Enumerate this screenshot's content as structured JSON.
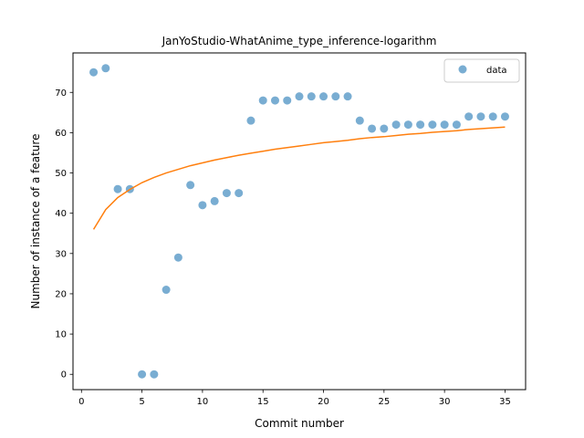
{
  "chart_data": {
    "type": "scatter",
    "title": "JanYoStudio-WhatAnime_type_inference-logarithm",
    "xlabel": "Commit number",
    "ylabel": "Number of instance of a feature",
    "xlim": [
      -0.7,
      36.7
    ],
    "ylim": [
      -3.8,
      79.8
    ],
    "xticks": [
      0,
      5,
      10,
      15,
      20,
      25,
      30,
      35
    ],
    "yticks": [
      0,
      10,
      20,
      30,
      40,
      50,
      60,
      70
    ],
    "grid": false,
    "legend_position": "top-right",
    "colors": {
      "scatter": "#1f77b4",
      "fit": "#ff7f0e"
    },
    "series": [
      {
        "name": "data",
        "kind": "scatter",
        "x": [
          1,
          2,
          3,
          4,
          5,
          6,
          7,
          8,
          9,
          10,
          11,
          12,
          13,
          14,
          15,
          16,
          17,
          18,
          19,
          20,
          21,
          22,
          23,
          24,
          25,
          26,
          27,
          28,
          29,
          30,
          31,
          32,
          33,
          34,
          35
        ],
        "y": [
          75,
          76,
          46,
          46,
          0,
          0,
          21,
          29,
          47,
          42,
          43,
          45,
          45,
          63,
          68,
          68,
          68,
          69,
          69,
          69,
          69,
          69,
          63,
          61,
          61,
          62,
          62,
          62,
          62,
          62,
          62,
          64,
          64,
          64,
          64
        ]
      },
      {
        "kind": "line",
        "x": [
          1,
          2,
          3,
          4,
          5,
          6,
          7,
          8,
          9,
          10,
          11,
          12,
          13,
          14,
          15,
          16,
          17,
          18,
          19,
          20,
          21,
          22,
          23,
          24,
          25,
          26,
          27,
          28,
          29,
          30,
          31,
          32,
          33,
          34,
          35
        ],
        "y": [
          36.0,
          40.9,
          43.9,
          45.9,
          47.6,
          48.9,
          50.0,
          50.9,
          51.8,
          52.5,
          53.2,
          53.8,
          54.4,
          54.9,
          55.4,
          55.9,
          56.3,
          56.7,
          57.1,
          57.5,
          57.8,
          58.1,
          58.5,
          58.8,
          59.0,
          59.3,
          59.6,
          59.8,
          60.1,
          60.3,
          60.5,
          60.8,
          61.0,
          61.2,
          61.4
        ]
      }
    ]
  }
}
